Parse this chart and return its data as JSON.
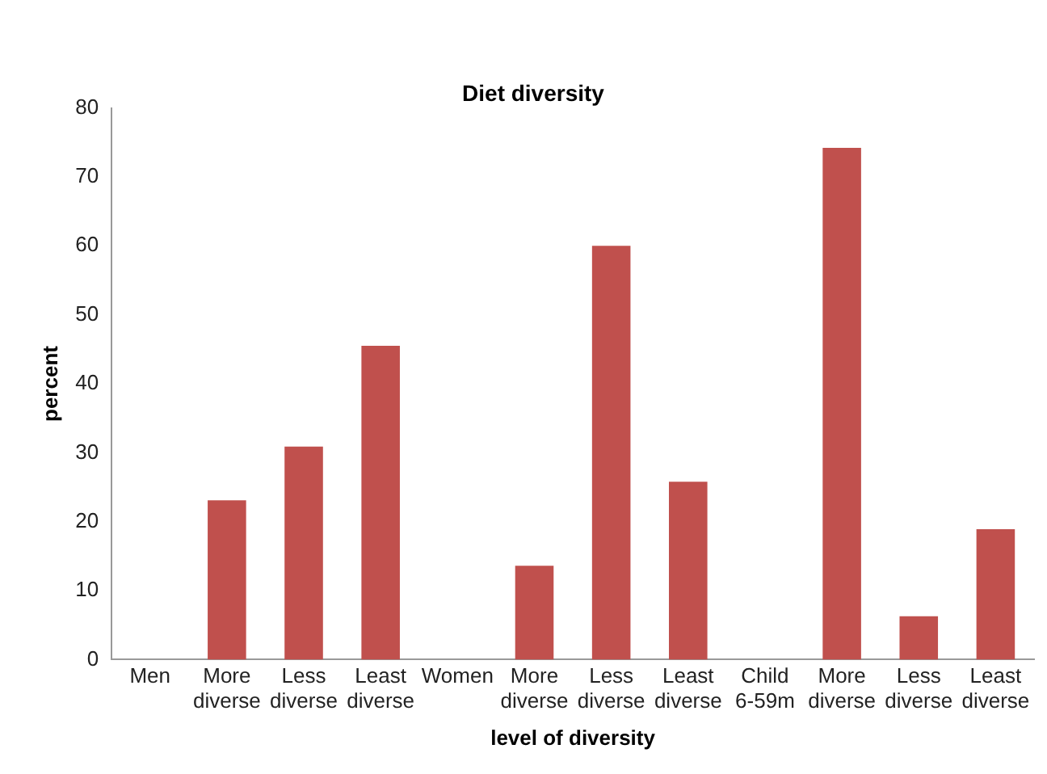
{
  "chart_data": {
    "type": "bar",
    "title": "Diet diversity",
    "xlabel": "level of diversity",
    "ylabel": "percent",
    "categories": [
      "Men",
      "More diverse",
      "Less diverse",
      "Least diverse",
      "Women",
      "More diverse",
      "Less diverse",
      "Least diverse",
      "Child 6-59m",
      "More diverse",
      "Less diverse",
      "Least diverse"
    ],
    "values": [
      null,
      23.1,
      30.9,
      45.5,
      null,
      13.6,
      60.0,
      25.8,
      null,
      74.2,
      6.3,
      18.9
    ],
    "color": "#c0504d",
    "ylim": [
      0,
      80
    ],
    "yticks": [
      0,
      10,
      20,
      30,
      40,
      50,
      60,
      70,
      80
    ],
    "grid": false,
    "legend": false
  }
}
